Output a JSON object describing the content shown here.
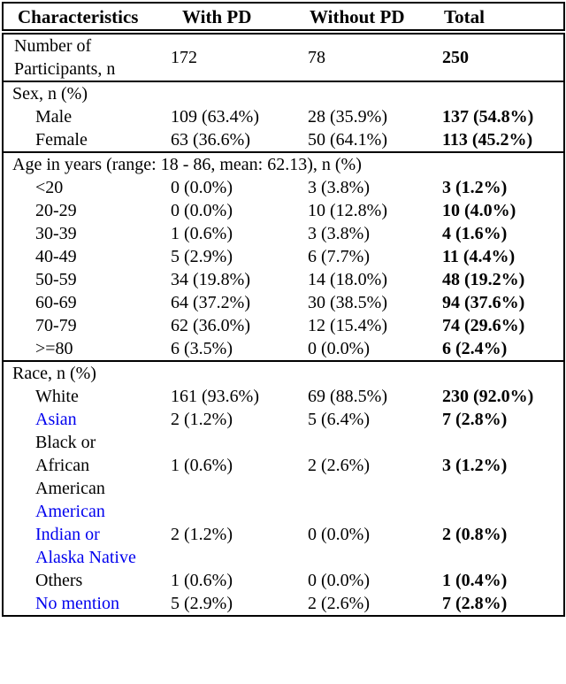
{
  "table": {
    "title": "participant-characteristics-table",
    "colors": {
      "text": "#000000",
      "highlight_blue": "#0000EE",
      "border": "#000000",
      "background": "#ffffff"
    },
    "header": [
      "Characteristics",
      "With PD",
      "Without PD",
      "Total"
    ],
    "rows": [
      {
        "type": "data",
        "indent": false,
        "blue": false,
        "label": "Number of Participants, n",
        "with_pd": "172",
        "without_pd": "78",
        "total": "250"
      },
      {
        "type": "section",
        "label": "Sex, n (%)"
      },
      {
        "type": "data",
        "indent": true,
        "blue": false,
        "label": "Male",
        "with_pd": "109 (63.4%)",
        "without_pd": "28 (35.9%)",
        "total": "137 (54.8%)"
      },
      {
        "type": "data",
        "indent": true,
        "blue": false,
        "label": "Female",
        "with_pd": "63 (36.6%)",
        "without_pd": "50 (64.1%)",
        "total": "113 (45.2%)"
      },
      {
        "type": "section",
        "label": "Age in years (range: 18 - 86, mean: 62.13), n (%)"
      },
      {
        "type": "data",
        "indent": true,
        "blue": false,
        "label": "<20",
        "with_pd": "0 (0.0%)",
        "without_pd": "3 (3.8%)",
        "total": "3 (1.2%)"
      },
      {
        "type": "data",
        "indent": true,
        "blue": false,
        "label": "20-29",
        "with_pd": "0 (0.0%)",
        "without_pd": "10 (12.8%)",
        "total": "10 (4.0%)"
      },
      {
        "type": "data",
        "indent": true,
        "blue": false,
        "label": "30-39",
        "with_pd": "1 (0.6%)",
        "without_pd": "3 (3.8%)",
        "total": "4 (1.6%)"
      },
      {
        "type": "data",
        "indent": true,
        "blue": false,
        "label": "40-49",
        "with_pd": "5 (2.9%)",
        "without_pd": "6 (7.7%)",
        "total": "11 (4.4%)"
      },
      {
        "type": "data",
        "indent": true,
        "blue": false,
        "label": "50-59",
        "with_pd": "34 (19.8%)",
        "without_pd": "14 (18.0%)",
        "total": "48 (19.2%)"
      },
      {
        "type": "data",
        "indent": true,
        "blue": false,
        "label": "60-69",
        "with_pd": "64 (37.2%)",
        "without_pd": "30 (38.5%)",
        "total": "94 (37.6%)"
      },
      {
        "type": "data",
        "indent": true,
        "blue": false,
        "label": "70-79",
        "with_pd": "62 (36.0%)",
        "without_pd": "12 (15.4%)",
        "total": "74 (29.6%)"
      },
      {
        "type": "data",
        "indent": true,
        "blue": false,
        "label": ">=80",
        "with_pd": "6 (3.5%)",
        "without_pd": "0 (0.0%)",
        "total": "6 (2.4%)"
      },
      {
        "type": "section",
        "label": "Race, n (%)"
      },
      {
        "type": "data",
        "indent": true,
        "blue": false,
        "label": "White",
        "with_pd": "161 (93.6%)",
        "without_pd": "69 (88.5%)",
        "total": "230 (92.0%)"
      },
      {
        "type": "data",
        "indent": true,
        "blue": true,
        "label": "Asian",
        "with_pd": "2 (1.2%)",
        "without_pd": "5 (6.4%)",
        "total": "7 (2.8%)"
      },
      {
        "type": "data",
        "indent": true,
        "blue": false,
        "label": "Black or African American",
        "with_pd": "1 (0.6%)",
        "without_pd": "2 (2.6%)",
        "total": "3 (1.2%)"
      },
      {
        "type": "data",
        "indent": true,
        "blue": true,
        "label": "American Indian or Alaska Native",
        "with_pd": "2 (1.2%)",
        "without_pd": "0 (0.0%)",
        "total": "2 (0.8%)"
      },
      {
        "type": "data",
        "indent": true,
        "blue": false,
        "label": "Others",
        "with_pd": "1 (0.6%)",
        "without_pd": "0 (0.0%)",
        "total": "1 (0.4%)"
      },
      {
        "type": "data",
        "indent": true,
        "blue": true,
        "label": "No mention",
        "with_pd": "5 (2.9%)",
        "without_pd": "2 (2.6%)",
        "total": "7 (2.8%)"
      }
    ]
  }
}
